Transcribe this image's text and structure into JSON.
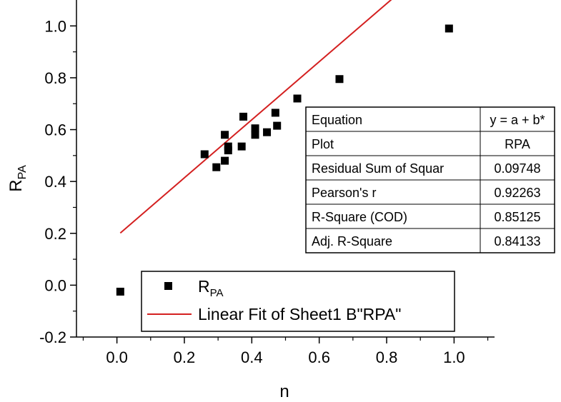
{
  "chart_data": {
    "type": "scatter",
    "xlabel": "n",
    "ylabel": {
      "base": "R",
      "sub": "PA"
    },
    "xlim": [
      -0.12,
      1.12
    ],
    "ylim": [
      -0.2,
      1.1
    ],
    "xticks": [
      "0.0",
      "0.2",
      "0.4",
      "0.6",
      "0.8",
      "1.0"
    ],
    "yticks": [
      "-0.2",
      "0.0",
      "0.2",
      "0.4",
      "0.6",
      "0.8",
      "1.0"
    ],
    "colors": {
      "points": "#000000",
      "fit_line": "#d42020"
    },
    "series": [
      {
        "name": "R_PA",
        "marker": "square",
        "points": [
          [
            0.01,
            -0.025
          ],
          [
            0.26,
            0.505
          ],
          [
            0.295,
            0.455
          ],
          [
            0.32,
            0.48
          ],
          [
            0.32,
            0.58
          ],
          [
            0.33,
            0.535
          ],
          [
            0.33,
            0.52
          ],
          [
            0.37,
            0.535
          ],
          [
            0.375,
            0.65
          ],
          [
            0.41,
            0.605
          ],
          [
            0.41,
            0.58
          ],
          [
            0.445,
            0.59
          ],
          [
            0.47,
            0.665
          ],
          [
            0.475,
            0.615
          ],
          [
            0.535,
            0.72
          ],
          [
            0.66,
            0.795
          ],
          [
            0.985,
            0.99
          ]
        ]
      },
      {
        "name": "Linear Fit of Sheet1 B\"RPA\"",
        "type": "line",
        "intercept": 0.19,
        "slope": 1.12,
        "x_range": [
          0.01,
          1.005
        ]
      }
    ],
    "legend": {
      "position": "bottom-right",
      "entries": [
        {
          "base": "R",
          "sub": "PA"
        },
        {
          "label": "Linear Fit of Sheet1 B\"RPA\""
        }
      ]
    },
    "stats_table": {
      "position": "right",
      "rows": [
        [
          "Equation",
          "y = a + b*"
        ],
        [
          "Plot",
          "RPA"
        ],
        [
          "Residual Sum of Squar",
          "0.09748"
        ],
        [
          "Pearson's r",
          "0.92263"
        ],
        [
          "R-Square (COD)",
          "0.85125"
        ],
        [
          "Adj. R-Square",
          "0.84133"
        ]
      ]
    }
  }
}
